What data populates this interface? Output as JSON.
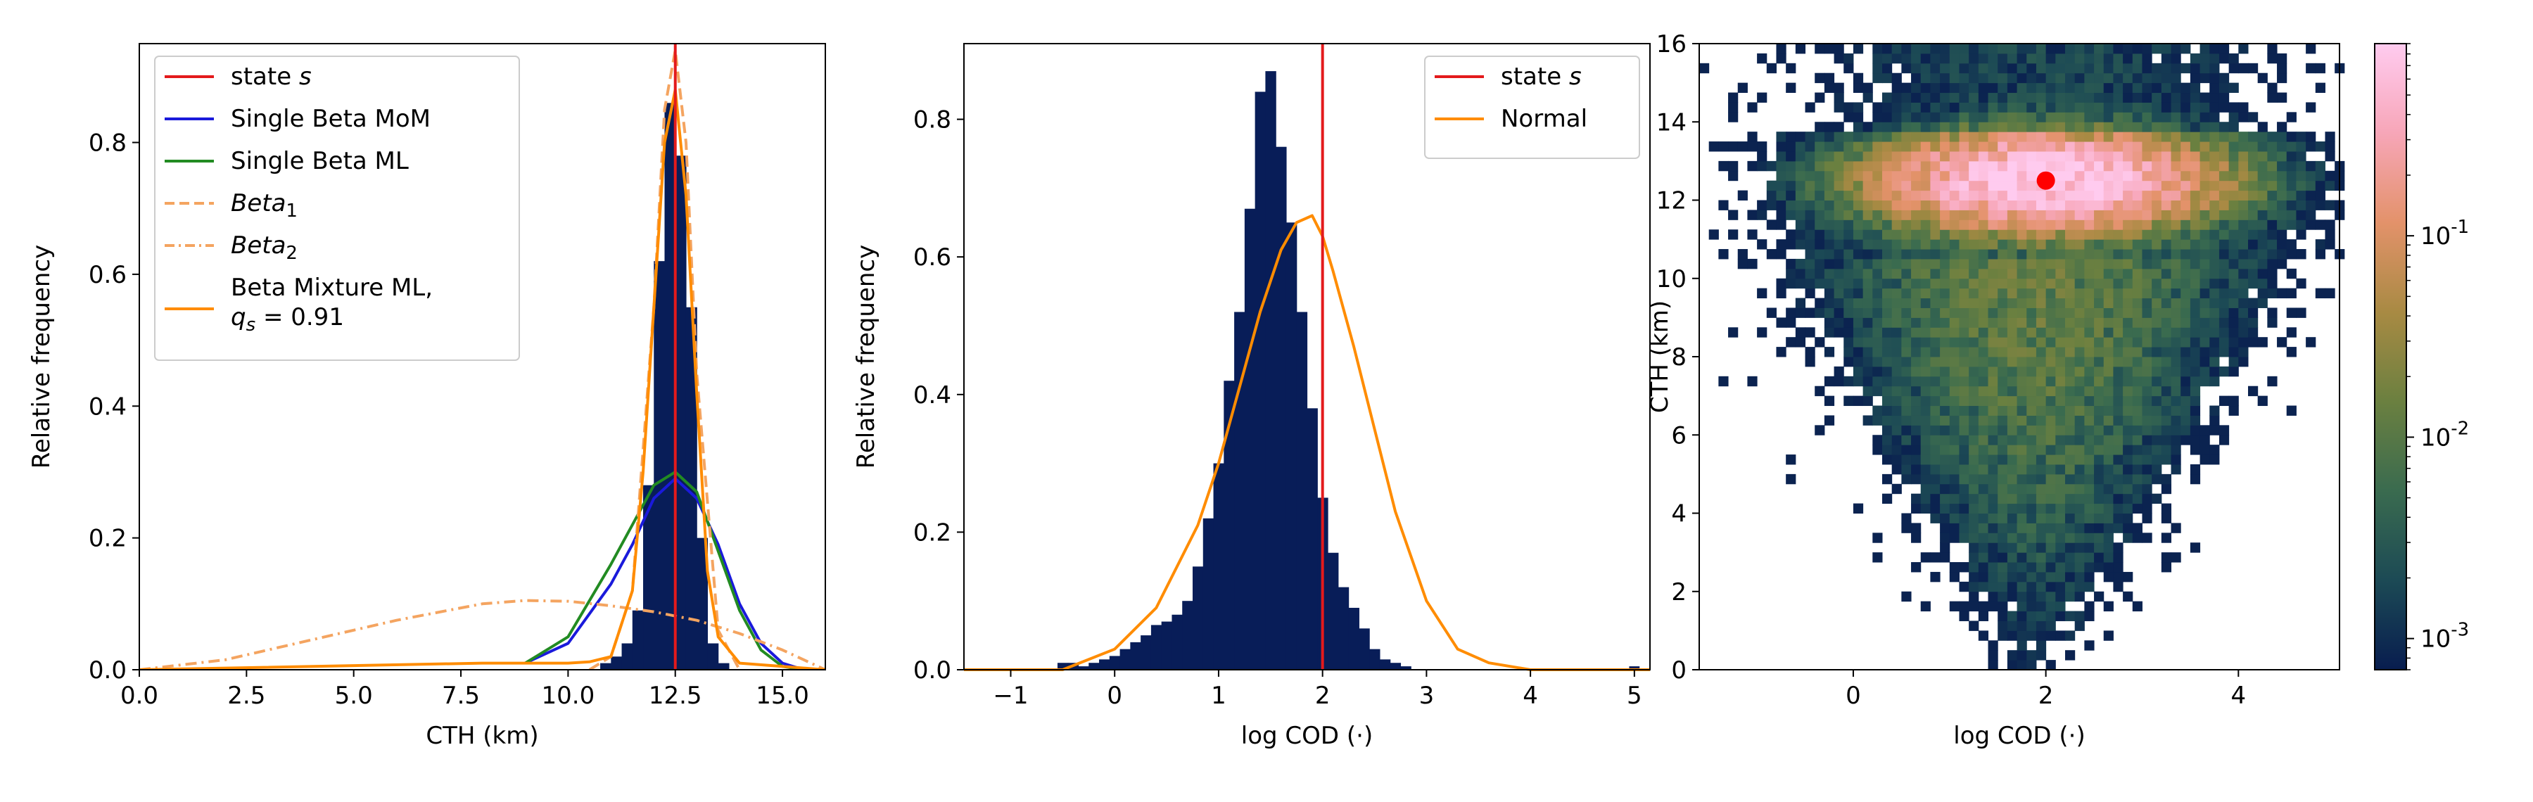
{
  "chart_data": [
    {
      "type": "bar",
      "panel": "left",
      "xlabel": "CTH (km)",
      "ylabel": "Relative frequency",
      "xlim": [
        0,
        16
      ],
      "ylim": [
        0,
        0.95
      ],
      "x_ticks": [
        "0.0",
        "2.5",
        "5.0",
        "7.5",
        "10.0",
        "12.5",
        "15.0"
      ],
      "x_tick_values": [
        0,
        2.5,
        5,
        7.5,
        10,
        12.5,
        15
      ],
      "y_ticks": [
        "0.0",
        "0.2",
        "0.4",
        "0.6",
        "0.8"
      ],
      "y_tick_values": [
        0,
        0.2,
        0.4,
        0.6,
        0.8
      ],
      "histogram": {
        "bin_edges": [
          10.75,
          11.0,
          11.25,
          11.5,
          11.75,
          12.0,
          12.25,
          12.5,
          12.75,
          13.0,
          13.25,
          13.5,
          13.75
        ],
        "values": [
          0.01,
          0.02,
          0.04,
          0.09,
          0.28,
          0.62,
          0.86,
          0.78,
          0.55,
          0.2,
          0.04,
          0.01
        ],
        "color": "#081d58"
      },
      "series": [
        {
          "name": "state s",
          "type": "vline",
          "x": 12.5,
          "color": "#e31a1c"
        },
        {
          "name": "Single Beta MoM",
          "color": "#1a1adb",
          "x": [
            9,
            10,
            11,
            11.5,
            12,
            12.5,
            13,
            13.5,
            14,
            14.5,
            15,
            15.5
          ],
          "y": [
            0.01,
            0.04,
            0.13,
            0.19,
            0.26,
            0.29,
            0.26,
            0.19,
            0.1,
            0.04,
            0.01,
            0.0
          ]
        },
        {
          "name": "Single Beta ML",
          "color": "#228b22",
          "x": [
            9,
            10,
            11,
            11.5,
            12,
            12.5,
            13,
            13.5,
            14,
            14.5,
            15,
            15.5
          ],
          "y": [
            0.01,
            0.05,
            0.16,
            0.22,
            0.28,
            0.3,
            0.27,
            0.18,
            0.09,
            0.03,
            0.005,
            0.0
          ]
        },
        {
          "name": "Beta1",
          "type": "dashed",
          "color": "#f4a460",
          "x": [
            10.5,
            11,
            11.5,
            12,
            12.25,
            12.5,
            12.75,
            13,
            13.5,
            14
          ],
          "y": [
            0.0,
            0.02,
            0.12,
            0.55,
            0.85,
            0.94,
            0.8,
            0.45,
            0.06,
            0.0
          ]
        },
        {
          "name": "Beta2",
          "type": "dashdot",
          "color": "#f4a460",
          "x": [
            0,
            2,
            4,
            6,
            8,
            9,
            10,
            11,
            12,
            13,
            14,
            15,
            15.5,
            16
          ],
          "y": [
            0.0,
            0.015,
            0.045,
            0.075,
            0.1,
            0.105,
            0.104,
            0.097,
            0.088,
            0.075,
            0.055,
            0.03,
            0.015,
            0.0
          ]
        },
        {
          "name": "Beta Mixture ML, q_s = 0.91",
          "color": "#ff8c00",
          "x": [
            0,
            8,
            10,
            10.5,
            11,
            11.5,
            11.75,
            12,
            12.25,
            12.5,
            12.75,
            13,
            13.25,
            13.5,
            14,
            15,
            16
          ],
          "y": [
            0.0,
            0.01,
            0.01,
            0.012,
            0.02,
            0.12,
            0.3,
            0.55,
            0.8,
            0.88,
            0.72,
            0.42,
            0.15,
            0.05,
            0.01,
            0.005,
            0.0
          ]
        }
      ],
      "legend": {
        "placement": "top-left",
        "entries": [
          {
            "label": "state s",
            "style": "solid",
            "color": "#e31a1c"
          },
          {
            "label": "Single Beta MoM",
            "style": "solid",
            "color": "#1a1adb"
          },
          {
            "label": "Single Beta ML",
            "style": "solid",
            "color": "#228b22"
          },
          {
            "label": "Beta1",
            "style": "dashed",
            "color": "#f4a460"
          },
          {
            "label": "Beta2",
            "style": "dashdot",
            "color": "#f4a460"
          },
          {
            "label": "Beta Mixture ML,",
            "label2": "q_s = 0.91",
            "style": "solid",
            "color": "#ff8c00"
          }
        ]
      }
    },
    {
      "type": "bar",
      "panel": "middle",
      "xlabel": "log COD (·)",
      "ylabel": "Relative frequency",
      "xlim": [
        -1.45,
        5.15
      ],
      "ylim": [
        0,
        0.91
      ],
      "x_ticks": [
        "−1",
        "0",
        "1",
        "2",
        "3",
        "4",
        "5"
      ],
      "x_tick_values": [
        -1,
        0,
        1,
        2,
        3,
        4,
        5
      ],
      "y_ticks": [
        "0.0",
        "0.2",
        "0.4",
        "0.6",
        "0.8"
      ],
      "y_tick_values": [
        0,
        0.2,
        0.4,
        0.6,
        0.8
      ],
      "histogram": {
        "bin_start": -0.55,
        "bin_width": 0.1,
        "values": [
          0.01,
          0.01,
          0.005,
          0.01,
          0.015,
          0.02,
          0.03,
          0.04,
          0.05,
          0.065,
          0.07,
          0.08,
          0.1,
          0.15,
          0.22,
          0.3,
          0.42,
          0.52,
          0.67,
          0.84,
          0.87,
          0.76,
          0.65,
          0.52,
          0.38,
          0.25,
          0.17,
          0.12,
          0.09,
          0.06,
          0.03,
          0.015,
          0.01,
          0.005
        ],
        "extra_bins": [
          {
            "x0": 4.95,
            "x1": 5.05,
            "value": 0.005
          }
        ],
        "color": "#081d58"
      },
      "series": [
        {
          "name": "state s",
          "type": "vline",
          "x": 2.0,
          "color": "#e31a1c"
        },
        {
          "name": "Normal",
          "color": "#ff8c00",
          "x": [
            -1.45,
            -0.5,
            0,
            0.4,
            0.8,
            1.0,
            1.2,
            1.4,
            1.6,
            1.75,
            1.9,
            2.0,
            2.1,
            2.3,
            2.5,
            2.7,
            3.0,
            3.3,
            3.6,
            4.0,
            5.15
          ],
          "y": [
            0.0,
            0.0,
            0.03,
            0.09,
            0.21,
            0.3,
            0.41,
            0.52,
            0.61,
            0.65,
            0.66,
            0.63,
            0.58,
            0.47,
            0.35,
            0.23,
            0.1,
            0.03,
            0.01,
            0.0,
            0.0
          ]
        }
      ],
      "legend": {
        "placement": "top-right",
        "entries": [
          {
            "label": "state s",
            "style": "solid",
            "color": "#e31a1c"
          },
          {
            "label": "Normal",
            "style": "solid",
            "color": "#ff8c00"
          }
        ]
      }
    },
    {
      "type": "heatmap",
      "panel": "right",
      "xlabel": "log COD (·)",
      "ylabel": "CTH (km)",
      "xlim": [
        -1.6,
        5.05
      ],
      "ylim": [
        0,
        16
      ],
      "x_ticks": [
        "0",
        "2",
        "4"
      ],
      "x_tick_values": [
        0,
        2,
        4
      ],
      "y_ticks": [
        "0",
        "2",
        "4",
        "6",
        "8",
        "10",
        "12",
        "14",
        "16"
      ],
      "y_tick_values": [
        0,
        2,
        4,
        6,
        8,
        10,
        12,
        14,
        16
      ],
      "color_scale": "log",
      "colorbar": {
        "ticks": [
          "10^{-3}",
          "10^{-2}",
          "10^{-1}"
        ],
        "tick_values": [
          0.001,
          0.01,
          0.1
        ],
        "range": [
          0.0007,
          0.9
        ],
        "colors": [
          "#081d4f",
          "#1c4a55",
          "#3a6b4f",
          "#6b8040",
          "#a88a43",
          "#e3926a",
          "#f7a6b8",
          "#ffcbef"
        ]
      },
      "peak": {
        "x": 2.0,
        "y": 12.5
      },
      "marker": {
        "x": 2.0,
        "y": 12.5,
        "color": "#ff0000"
      }
    }
  ]
}
